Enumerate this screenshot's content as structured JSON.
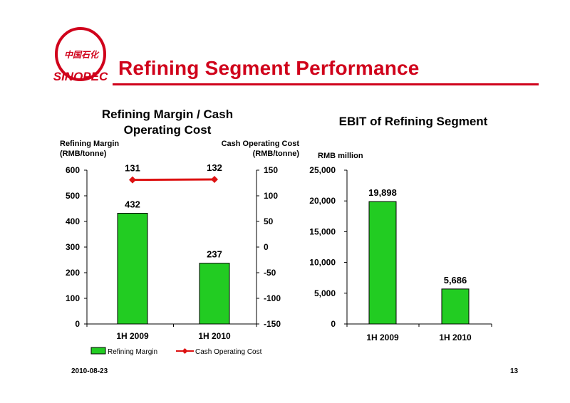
{
  "slide": {
    "title": "Refining Segment Performance",
    "date": "2010-08-23",
    "page_number": "13",
    "logo_text": "SINOPEC 中国石化",
    "accent_color": "#d0021b"
  },
  "chart_data": [
    {
      "type": "bar",
      "title": "Refining Margin / Cash Operating Cost",
      "ylabel_left": "Refining Margin (RMB/tonne)",
      "ylabel_right": "Cash Operating Cost (RMB/tonne)",
      "categories": [
        "1H 2009",
        "1H 2010"
      ],
      "ylim": [
        0,
        600
      ],
      "yticks": [
        0,
        100,
        200,
        300,
        400,
        500,
        600
      ],
      "y2lim": [
        -150,
        150
      ],
      "y2ticks": [
        -150,
        -100,
        -50,
        0,
        50,
        100,
        150
      ],
      "series": [
        {
          "name": "Refining Margin",
          "type": "bar",
          "axis": "left",
          "values": [
            432,
            237
          ],
          "color": "#22cc22"
        },
        {
          "name": "Cash Operating Cost",
          "type": "line",
          "axis": "right",
          "values": [
            131,
            132
          ],
          "color": "#dd1111"
        }
      ],
      "legend": "bottom",
      "grid": false
    },
    {
      "type": "bar",
      "title": "EBIT of Refining Segment",
      "ylabel": "RMB million",
      "categories": [
        "1H 2009",
        "1H 2010"
      ],
      "ylim": [
        0,
        25000
      ],
      "yticks": [
        "0",
        "5,000",
        "10,000",
        "15,000",
        "20,000",
        "25,000"
      ],
      "values": [
        19898,
        5686
      ],
      "value_labels": [
        "19,898",
        "5,686"
      ],
      "color": "#22cc22",
      "grid": false
    }
  ]
}
